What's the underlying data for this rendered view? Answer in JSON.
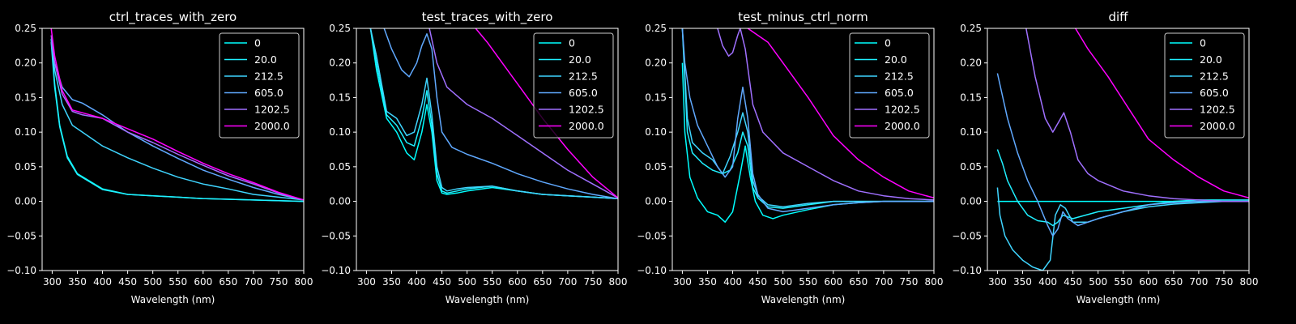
{
  "chart_data": [
    {
      "type": "line",
      "title": "ctrl_traces_with_zero",
      "xlabel": "Wavelength (nm)",
      "ylabel": "",
      "xlim": [
        280,
        800
      ],
      "ylim": [
        -0.1,
        0.25
      ],
      "xticks": [
        "300",
        "350",
        "400",
        "450",
        "500",
        "550",
        "600",
        "650",
        "700",
        "750",
        "800"
      ],
      "yticks": [
        "−0.10",
        "−0.05",
        "0.00",
        "0.05",
        "0.10",
        "0.15",
        "0.20",
        "0.25"
      ],
      "legend_position": "top-right",
      "series": [
        {
          "name": "0",
          "color": "#00ffff",
          "x": [
            298,
            305,
            315,
            330,
            350,
            400,
            450,
            500,
            550,
            600,
            650,
            700,
            750,
            800
          ],
          "y": [
            0.235,
            0.17,
            0.11,
            0.065,
            0.04,
            0.018,
            0.01,
            0.008,
            0.006,
            0.004,
            0.003,
            0.002,
            0.001,
            0.0
          ]
        },
        {
          "name": "20.0",
          "color": "#1ff0ff",
          "x": [
            298,
            305,
            315,
            330,
            350,
            400,
            450,
            500,
            550,
            600,
            650,
            700,
            750,
            800
          ],
          "y": [
            0.23,
            0.165,
            0.108,
            0.063,
            0.039,
            0.017,
            0.01,
            0.008,
            0.006,
            0.004,
            0.003,
            0.002,
            0.001,
            0.0
          ]
        },
        {
          "name": "212.5",
          "color": "#3fd5ff",
          "x": [
            298,
            305,
            320,
            340,
            360,
            400,
            450,
            500,
            550,
            600,
            650,
            700,
            750,
            800
          ],
          "y": [
            0.235,
            0.19,
            0.14,
            0.11,
            0.1,
            0.08,
            0.063,
            0.048,
            0.035,
            0.025,
            0.018,
            0.01,
            0.006,
            0.002
          ]
        },
        {
          "name": "605.0",
          "color": "#60a9ff",
          "x": [
            298,
            305,
            320,
            340,
            360,
            400,
            450,
            500,
            550,
            600,
            650,
            700,
            750,
            800
          ],
          "y": [
            0.23,
            0.2,
            0.165,
            0.147,
            0.142,
            0.125,
            0.1,
            0.08,
            0.062,
            0.045,
            0.032,
            0.02,
            0.01,
            0.002
          ]
        },
        {
          "name": "1202.5",
          "color": "#a070ff",
          "x": [
            298,
            305,
            320,
            340,
            360,
            400,
            450,
            500,
            550,
            600,
            650,
            700,
            750,
            800
          ],
          "y": [
            0.24,
            0.2,
            0.155,
            0.13,
            0.125,
            0.12,
            0.1,
            0.085,
            0.068,
            0.052,
            0.037,
            0.025,
            0.012,
            0.002
          ]
        },
        {
          "name": "2000.0",
          "color": "#ff00ff",
          "x": [
            298,
            305,
            320,
            340,
            360,
            400,
            450,
            500,
            550,
            600,
            650,
            700,
            750,
            800
          ],
          "y": [
            0.25,
            0.21,
            0.16,
            0.132,
            0.128,
            0.12,
            0.105,
            0.09,
            0.072,
            0.055,
            0.04,
            0.027,
            0.013,
            0.002
          ]
        }
      ]
    },
    {
      "type": "line",
      "title": "test_traces_with_zero",
      "xlabel": "Wavelength (nm)",
      "ylabel": "",
      "xlim": [
        280,
        800
      ],
      "ylim": [
        -0.1,
        0.25
      ],
      "xticks": [
        "300",
        "350",
        "400",
        "450",
        "500",
        "550",
        "600",
        "650",
        "700",
        "750",
        "800"
      ],
      "yticks": [
        "−0.10",
        "−0.05",
        "0.00",
        "0.05",
        "0.10",
        "0.15",
        "0.20",
        "0.25"
      ],
      "legend_position": "top-right",
      "series": [
        {
          "name": "0",
          "color": "#00ffff",
          "x": [
            308,
            320,
            340,
            360,
            380,
            395,
            410,
            420,
            430,
            440,
            450,
            460,
            480,
            500,
            550,
            600,
            650,
            700,
            750,
            800
          ],
          "y": [
            0.25,
            0.19,
            0.12,
            0.1,
            0.07,
            0.06,
            0.1,
            0.14,
            0.1,
            0.03,
            0.012,
            0.01,
            0.012,
            0.015,
            0.02,
            0.015,
            0.01,
            0.008,
            0.006,
            0.004
          ]
        },
        {
          "name": "20.0",
          "color": "#1ff0ff",
          "x": [
            308,
            320,
            340,
            360,
            380,
            395,
            410,
            420,
            430,
            440,
            450,
            460,
            480,
            500,
            550,
            600,
            650,
            700,
            750,
            800
          ],
          "y": [
            0.25,
            0.2,
            0.125,
            0.11,
            0.085,
            0.08,
            0.12,
            0.16,
            0.11,
            0.04,
            0.015,
            0.012,
            0.015,
            0.018,
            0.022,
            0.015,
            0.01,
            0.008,
            0.006,
            0.004
          ]
        },
        {
          "name": "212.5",
          "color": "#3fd5ff",
          "x": [
            308,
            320,
            340,
            360,
            380,
            395,
            410,
            420,
            430,
            440,
            450,
            460,
            480,
            500,
            550,
            600,
            650,
            700,
            750,
            800
          ],
          "y": [
            0.25,
            0.21,
            0.13,
            0.12,
            0.095,
            0.1,
            0.14,
            0.178,
            0.125,
            0.05,
            0.02,
            0.015,
            0.018,
            0.02,
            0.022,
            0.015,
            0.01,
            0.008,
            0.006,
            0.004
          ]
        },
        {
          "name": "605.0",
          "color": "#60a9ff",
          "x": [
            335,
            350,
            370,
            385,
            400,
            410,
            420,
            430,
            440,
            450,
            470,
            500,
            550,
            600,
            650,
            700,
            750,
            800
          ],
          "y": [
            0.25,
            0.22,
            0.19,
            0.18,
            0.2,
            0.225,
            0.242,
            0.22,
            0.15,
            0.1,
            0.078,
            0.068,
            0.055,
            0.04,
            0.028,
            0.018,
            0.01,
            0.004
          ]
        },
        {
          "name": "1202.5",
          "color": "#a070ff",
          "x": [
            425,
            440,
            460,
            500,
            550,
            600,
            650,
            700,
            750,
            800
          ],
          "y": [
            0.25,
            0.2,
            0.165,
            0.14,
            0.12,
            0.095,
            0.07,
            0.045,
            0.025,
            0.005
          ]
        },
        {
          "name": "2000.0",
          "color": "#ff00ff",
          "x": [
            517,
            540,
            570,
            600,
            650,
            700,
            750,
            800
          ],
          "y": [
            0.25,
            0.23,
            0.2,
            0.17,
            0.12,
            0.075,
            0.035,
            0.005
          ]
        }
      ]
    },
    {
      "type": "line",
      "title": "test_minus_ctrl_norm",
      "xlabel": "Wavelength (nm)",
      "ylabel": "",
      "xlim": [
        280,
        800
      ],
      "ylim": [
        -0.1,
        0.25
      ],
      "xticks": [
        "300",
        "350",
        "400",
        "450",
        "500",
        "550",
        "600",
        "650",
        "700",
        "750",
        "800"
      ],
      "yticks": [
        "−0.10",
        "−0.05",
        "0.00",
        "0.05",
        "0.10",
        "0.15",
        "0.20",
        "0.25"
      ],
      "legend_position": "top-right",
      "series": [
        {
          "name": "0",
          "color": "#00ffff",
          "x": [
            300,
            305,
            315,
            330,
            350,
            370,
            385,
            400,
            415,
            425,
            435,
            445,
            460,
            480,
            500,
            550,
            600,
            650,
            700,
            750,
            800
          ],
          "y": [
            0.2,
            0.1,
            0.035,
            0.005,
            -0.015,
            -0.02,
            -0.03,
            -0.015,
            0.04,
            0.08,
            0.035,
            0.0,
            -0.02,
            -0.025,
            -0.02,
            -0.012,
            -0.005,
            -0.002,
            0.0,
            0.0,
            0.0
          ]
        },
        {
          "name": "20.0",
          "color": "#1ff0ff",
          "x": [
            300,
            310,
            320,
            340,
            360,
            380,
            395,
            410,
            420,
            430,
            440,
            450,
            470,
            500,
            550,
            600,
            650,
            700,
            750,
            800
          ],
          "y": [
            0.25,
            0.1,
            0.07,
            0.055,
            0.045,
            0.04,
            0.045,
            0.07,
            0.1,
            0.08,
            0.02,
            0.005,
            -0.008,
            -0.01,
            -0.005,
            0.0,
            0.0,
            0.0,
            0.0,
            0.0
          ]
        },
        {
          "name": "212.5",
          "color": "#3fd5ff",
          "x": [
            300,
            310,
            320,
            340,
            360,
            380,
            395,
            410,
            420,
            430,
            440,
            450,
            470,
            500,
            550,
            600,
            650,
            700,
            750,
            800
          ],
          "y": [
            0.25,
            0.12,
            0.085,
            0.07,
            0.06,
            0.04,
            0.065,
            0.1,
            0.128,
            0.1,
            0.03,
            0.008,
            -0.005,
            -0.008,
            -0.003,
            0.0,
            0.0,
            0.0,
            0.0,
            0.0
          ]
        },
        {
          "name": "605.0",
          "color": "#60a9ff",
          "x": [
            300,
            305,
            315,
            330,
            350,
            370,
            385,
            400,
            410,
            420,
            430,
            440,
            450,
            470,
            500,
            550,
            600,
            650,
            700,
            750,
            800
          ],
          "y": [
            0.25,
            0.2,
            0.15,
            0.11,
            0.08,
            0.05,
            0.035,
            0.05,
            0.12,
            0.165,
            0.12,
            0.04,
            0.01,
            -0.01,
            -0.015,
            -0.01,
            -0.005,
            -0.002,
            0.0,
            0.0,
            0.0
          ]
        },
        {
          "name": "1202.5",
          "color": "#a070ff",
          "x": [
            370,
            380,
            392,
            400,
            410,
            415,
            425,
            440,
            460,
            500,
            550,
            600,
            650,
            700,
            750,
            800
          ],
          "y": [
            0.25,
            0.225,
            0.21,
            0.215,
            0.24,
            0.25,
            0.22,
            0.14,
            0.1,
            0.07,
            0.05,
            0.03,
            0.015,
            0.008,
            0.004,
            0.002
          ]
        },
        {
          "name": "2000.0",
          "color": "#ff00ff",
          "x": [
            430,
            470,
            500,
            550,
            600,
            650,
            700,
            750,
            800
          ],
          "y": [
            0.25,
            0.23,
            0.2,
            0.15,
            0.095,
            0.06,
            0.035,
            0.015,
            0.005
          ]
        }
      ]
    },
    {
      "type": "line",
      "title": "diff",
      "xlabel": "Wavelength (nm)",
      "ylabel": "",
      "xlim": [
        280,
        800
      ],
      "ylim": [
        -0.1,
        0.25
      ],
      "xticks": [
        "300",
        "350",
        "400",
        "450",
        "500",
        "550",
        "600",
        "650",
        "700",
        "750",
        "800"
      ],
      "yticks": [
        "−0.10",
        "−0.05",
        "0.00",
        "0.05",
        "0.10",
        "0.15",
        "0.20",
        "0.25"
      ],
      "legend_position": "top-right",
      "series": [
        {
          "name": "0",
          "color": "#00ffff",
          "x": [
            300,
            800
          ],
          "y": [
            0.0,
            0.0
          ]
        },
        {
          "name": "20.0",
          "color": "#1ff0ff",
          "x": [
            300,
            310,
            320,
            340,
            360,
            380,
            400,
            410,
            420,
            430,
            450,
            500,
            550,
            600,
            650,
            700,
            750,
            800
          ],
          "y": [
            0.075,
            0.055,
            0.03,
            0.0,
            -0.02,
            -0.028,
            -0.03,
            -0.035,
            -0.03,
            -0.02,
            -0.025,
            -0.015,
            -0.01,
            -0.005,
            0.0,
            0.002,
            0.002,
            0.002
          ]
        },
        {
          "name": "212.5",
          "color": "#3fd5ff",
          "x": [
            300,
            305,
            315,
            330,
            350,
            370,
            390,
            405,
            415,
            425,
            435,
            450,
            480,
            500,
            550,
            600,
            650,
            700,
            750,
            800
          ],
          "y": [
            0.02,
            -0.02,
            -0.05,
            -0.07,
            -0.085,
            -0.095,
            -0.1,
            -0.085,
            -0.02,
            -0.005,
            -0.01,
            -0.03,
            -0.03,
            -0.025,
            -0.015,
            -0.008,
            -0.004,
            -0.002,
            0.0,
            0.0
          ]
        },
        {
          "name": "605.0",
          "color": "#60a9ff",
          "x": [
            300,
            320,
            340,
            360,
            380,
            400,
            410,
            420,
            430,
            440,
            460,
            480,
            500,
            550,
            600,
            650,
            700,
            750,
            800
          ],
          "y": [
            0.185,
            0.12,
            0.07,
            0.03,
            0.0,
            -0.035,
            -0.05,
            -0.04,
            -0.015,
            -0.025,
            -0.035,
            -0.03,
            -0.025,
            -0.015,
            -0.005,
            -0.002,
            0.0,
            0.0,
            0.0
          ]
        },
        {
          "name": "1202.5",
          "color": "#a070ff",
          "x": [
            357,
            375,
            395,
            410,
            422,
            432,
            445,
            460,
            480,
            500,
            550,
            600,
            650,
            700,
            750,
            800
          ],
          "y": [
            0.25,
            0.18,
            0.12,
            0.1,
            0.115,
            0.128,
            0.1,
            0.06,
            0.04,
            0.03,
            0.015,
            0.008,
            0.004,
            0.002,
            0.0,
            0.0
          ]
        },
        {
          "name": "2000.0",
          "color": "#ff00ff",
          "x": [
            455,
            480,
            520,
            560,
            600,
            650,
            700,
            750,
            800
          ],
          "y": [
            0.25,
            0.22,
            0.18,
            0.135,
            0.09,
            0.06,
            0.035,
            0.015,
            0.005
          ]
        }
      ]
    }
  ]
}
